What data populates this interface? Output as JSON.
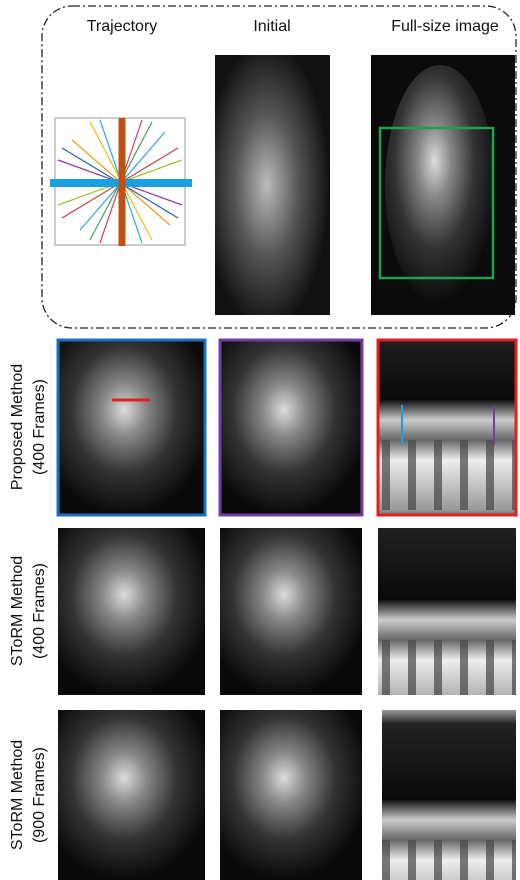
{
  "header": {
    "columns": [
      "Trajectory",
      "Initial",
      "Full-size image"
    ]
  },
  "rows": [
    {
      "label": "Proposed Method",
      "sublabel": "(400 Frames)"
    },
    {
      "label": "SToRM Method",
      "sublabel": "(400 Frames)"
    },
    {
      "label": "SToRM Method",
      "sublabel": "(900 Frames)"
    }
  ]
}
